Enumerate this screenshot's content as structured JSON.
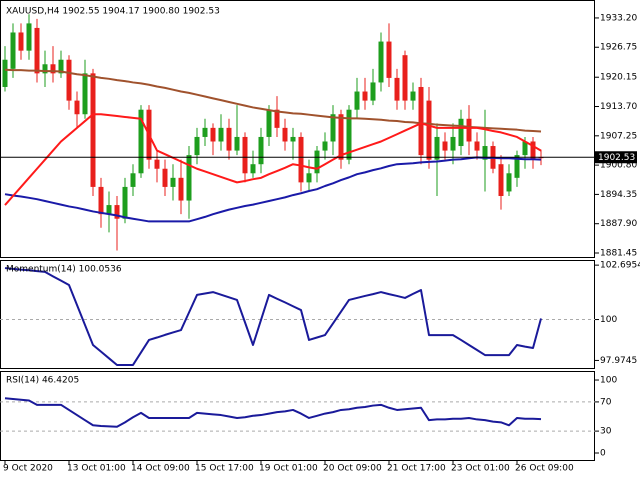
{
  "chart_data": [
    {
      "type": "candlestick",
      "title": "XAUUSD,H4  1902.55 1904.17 1900.80 1902.53",
      "categories": [
        "9 Oct 2020",
        null,
        null,
        null,
        null,
        null,
        null,
        null,
        "13 Oct 01:00",
        null,
        null,
        null,
        null,
        null,
        null,
        null,
        "14 Oct 09:00",
        null,
        null,
        null,
        null,
        null,
        null,
        null,
        "15 Oct 17:00",
        null,
        null,
        null,
        null,
        null,
        null,
        null,
        "19 Oct 01:00",
        null,
        null,
        null,
        null,
        null,
        null,
        null,
        "20 Oct 09:00",
        null,
        null,
        null,
        null,
        null,
        null,
        null,
        "21 Oct 17:00",
        null,
        null,
        null,
        null,
        null,
        null,
        null,
        "23 Oct 01:00",
        null,
        null,
        null,
        null,
        null,
        null,
        null,
        "26 Oct 09:00",
        null,
        null,
        null
      ],
      "open": [
        1918,
        1922,
        1930,
        1926,
        1931,
        1921,
        1923,
        1921,
        1924,
        1915,
        1912,
        1921,
        1896,
        1890,
        1892,
        1889,
        1896,
        1899,
        1913,
        1902,
        1900,
        1896,
        1898,
        1893,
        1903,
        1907,
        1909,
        1906,
        1909,
        1904,
        1907,
        1899,
        1901,
        1907,
        1913,
        1909,
        1906,
        1907,
        1897,
        1899,
        1904,
        1906,
        1912,
        1902,
        1913,
        1917,
        1915,
        1919,
        1928,
        1920,
        1925,
        1915,
        1918,
        1915,
        1902,
        1906,
        1904,
        1905,
        1911,
        1906,
        1902,
        1905,
        1901,
        1895,
        1898,
        1903,
        1906,
        1902.55
      ],
      "high": [
        1927,
        1932,
        1932,
        1934,
        1933,
        1926,
        1927,
        1926,
        1925,
        1917,
        1924,
        1922,
        1898,
        1895,
        1894,
        1898,
        1901,
        1914,
        1914,
        1904,
        1902,
        1901,
        1902,
        1905,
        1909,
        1911,
        1910,
        1912,
        1911,
        1914,
        1908,
        1904,
        1909,
        1914,
        1916,
        1911,
        1909,
        1908,
        1902,
        1905,
        1908,
        1914,
        1913,
        1914,
        1920,
        1920,
        1922,
        1930,
        1932,
        1922,
        1926,
        1919,
        1920,
        1918,
        1910,
        1908,
        1910,
        1913,
        1914,
        1908,
        1913,
        1906,
        1903,
        1901,
        1904,
        1907,
        1907,
        1904.17
      ],
      "low": [
        1917,
        1920,
        1924,
        1924,
        1919,
        1918,
        1919,
        1920,
        1913,
        1909,
        1911,
        1894,
        1887,
        1886,
        1882,
        1888,
        1894,
        1898,
        1900,
        1897,
        1894,
        1893,
        1890,
        1889,
        1901,
        1905,
        1903,
        1904,
        1902,
        1903,
        1897,
        1898,
        1899,
        1905,
        1907,
        1904,
        1902,
        1895,
        1895,
        1897,
        1902,
        1903,
        1900,
        1901,
        1911,
        1913,
        1914,
        1917,
        1918,
        1913,
        1913,
        1913,
        1901,
        1900,
        1894,
        1902,
        1901,
        1903,
        1903,
        1902,
        1895,
        1899,
        1891,
        1894,
        1896,
        1900,
        1900,
        1900.8
      ],
      "close": [
        1924,
        1930,
        1926,
        1932,
        1921,
        1923,
        1921,
        1924,
        1915,
        1912,
        1921,
        1896,
        1890,
        1892,
        1889,
        1896,
        1899,
        1913,
        1902,
        1900,
        1896,
        1898,
        1893,
        1903,
        1907,
        1909,
        1906,
        1909,
        1904,
        1907,
        1899,
        1901,
        1907,
        1913,
        1909,
        1906,
        1907,
        1897,
        1899,
        1904,
        1906,
        1912,
        1902,
        1913,
        1917,
        1915,
        1919,
        1928,
        1920,
        1915,
        1915,
        1917,
        1903,
        1902,
        1907,
        1904,
        1907,
        1911,
        1906,
        1904,
        1905,
        1900,
        1894,
        1899,
        1903,
        1906,
        1902,
        1902.53
      ],
      "up_color": "#1e9e1e",
      "down_color": "#e8201c",
      "series": [
        {
          "color": "#a0522d",
          "values": [
            1921.8,
            1921.7,
            1921.7,
            1921.6,
            1921.6,
            1921.5,
            1921.5,
            1921.4,
            1921.1,
            1920.8,
            1920.6,
            1920.3,
            1920,
            1919.8,
            1919.5,
            1919.3,
            1919,
            1918.8,
            1918.5,
            1918.1,
            1917.8,
            1917.4,
            1917,
            1916.7,
            1916.3,
            1915.9,
            1915.5,
            1915.1,
            1914.7,
            1914.3,
            1913.9,
            1913.5,
            1913.2,
            1912.9,
            1912.6,
            1912.4,
            1912.2,
            1912.1,
            1911.9,
            1911.7,
            1911.5,
            1911.3,
            1911.2,
            1911.1,
            1911.1,
            1911,
            1910.9,
            1910.8,
            1910.6,
            1910.5,
            1910.3,
            1910.2,
            1910,
            1909.9,
            1909.7,
            1909.6,
            1909.5,
            1909.4,
            1909.2,
            1909.1,
            1909,
            1908.9,
            1908.8,
            1908.7,
            1908.6,
            1908.4,
            1908.3,
            1908.2
          ]
        },
        {
          "color": "#1a1aa8",
          "values": [
            1894.4,
            1894.1,
            1893.9,
            1893.6,
            1893.3,
            1892.9,
            1892.5,
            1892.1,
            1891.7,
            1891.4,
            1891,
            1890.6,
            1890.3,
            1890,
            1889.7,
            1889.3,
            1889,
            1888.7,
            1888.4,
            1888.4,
            1888.4,
            1888.4,
            1888.4,
            1888.4,
            1888.9,
            1889.4,
            1890,
            1890.5,
            1891,
            1891.4,
            1891.8,
            1892.1,
            1892.5,
            1892.9,
            1893.3,
            1893.7,
            1894.2,
            1894.6,
            1895.1,
            1895.5,
            1896.2,
            1896.8,
            1897.5,
            1898.1,
            1898.8,
            1899.2,
            1899.7,
            1900.1,
            1900.6,
            1901,
            1901.1,
            1901.2,
            1901.4,
            1901.5,
            1901.6,
            1901.8,
            1902,
            1902.1,
            1902.3,
            1902.5,
            1902.4,
            1902.4,
            1902.3,
            1902.3,
            1902.2,
            1902.1,
            1902.1,
            1902
          ]
        },
        {
          "color": "#ff1a1a",
          "values": [
            1892,
            1894,
            1896,
            1898,
            1900,
            1902,
            1904,
            1906,
            1907.5,
            1909,
            1910.5,
            1912,
            1912,
            1911.8,
            1911.6,
            1911.4,
            1911.2,
            1911,
            1907.5,
            1904,
            1903.2,
            1902.4,
            1901.6,
            1900.8,
            1900,
            1899.4,
            1898.8,
            1898.2,
            1897.6,
            1897,
            1897.3,
            1897.7,
            1898,
            1898.8,
            1899.5,
            1900.2,
            1901,
            1900.7,
            1900.3,
            1900,
            1901,
            1902,
            1903,
            1903.6,
            1904.2,
            1904.8,
            1905.4,
            1906,
            1906.8,
            1907.6,
            1908.4,
            1909.2,
            1910,
            1909.5,
            1909,
            1909,
            1909,
            1909,
            1909,
            1909,
            1908.7,
            1908.3,
            1908,
            1907.5,
            1907,
            1906,
            1905,
            1904
          ]
        }
      ],
      "last_price": 1902.53,
      "ylim": [
        1880.57,
        1936.49
      ],
      "yticks": [
        {
          "value": 1933.2,
          "label": "1933.20"
        },
        1926.75,
        1920.15,
        {
          "value": 1913.7,
          "label": "1913.70"
        },
        1907.25,
        {
          "value": 1900.8,
          "label": "1900.80"
        },
        1894.35,
        {
          "value": 1887.9,
          "label": "1887.90"
        },
        1881.45
      ]
    },
    {
      "type": "line",
      "title": "Momentum(14) 100.0536",
      "series": [
        {
          "color": "#1a1a9a",
          "values": [
            102.55,
            102.51,
            102.47,
            102.44,
            102.4,
            102.36,
            102.14,
            101.93,
            101.71,
            100.72,
            99.73,
            98.74,
            98.41,
            98.08,
            97.75,
            97.75,
            97.75,
            98.37,
            98.99,
            99.11,
            99.24,
            99.36,
            99.48,
            100.35,
            101.22,
            101.29,
            101.36,
            101.23,
            101.1,
            100.97,
            99.86,
            98.74,
            99.98,
            101.22,
            101.03,
            100.85,
            100.66,
            100.47,
            98.99,
            99.11,
            99.23,
            99.81,
            100.39,
            100.97,
            101.07,
            101.17,
            101.26,
            101.36,
            101.26,
            101.17,
            101.07,
            101.27,
            101.46,
            99.23,
            99.23,
            99.23,
            99.23,
            98.99,
            98.74,
            98.49,
            98.24,
            98.24,
            98.24,
            98.24,
            98.74,
            98.66,
            98.59,
            100.0536
          ]
        }
      ],
      "levels": [
        100
      ],
      "ylim": [
        97.6,
        102.9
      ],
      "yticks": [
        102.6954,
        100,
        97.9745
      ]
    },
    {
      "type": "line",
      "title": "RSI(14) 46.4205",
      "series": [
        {
          "color": "#1a1a9a",
          "values": [
            75,
            74,
            73,
            72,
            66,
            66,
            66,
            66,
            59,
            52,
            45,
            38,
            37,
            36.5,
            36,
            42,
            49,
            55,
            48,
            48,
            48,
            48,
            48,
            48,
            55,
            54,
            53,
            52,
            50,
            48,
            49,
            51,
            52,
            54,
            56,
            57,
            59,
            54,
            48,
            51,
            54,
            56,
            59,
            60,
            62,
            63,
            65,
            66,
            62,
            59,
            60,
            61,
            62,
            45,
            46,
            46,
            47,
            47,
            48,
            46,
            45,
            43,
            42,
            38,
            48,
            47,
            47,
            46.4205
          ]
        }
      ],
      "levels": [
        70,
        30
      ],
      "ylim": [
        -9.6,
        111
      ],
      "yticks": [
        100,
        70,
        30,
        0
      ]
    }
  ]
}
